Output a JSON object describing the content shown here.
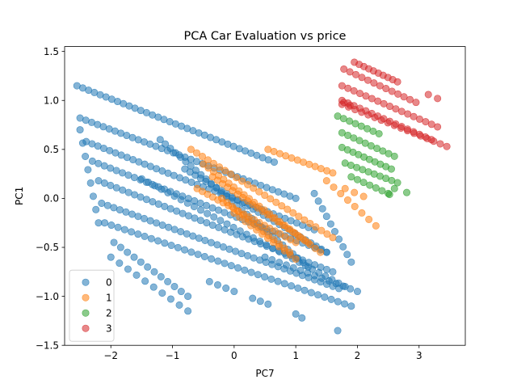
{
  "chart_data": {
    "type": "scatter",
    "title": "PCA Car Evaluation vs price",
    "xlabel": "PC7",
    "ylabel": "PC1",
    "xlim": [
      -2.75,
      3.75
    ],
    "ylim": [
      -1.5,
      1.55
    ],
    "xticks": [
      -2,
      -1,
      0,
      1,
      2,
      3
    ],
    "yticks": [
      -1.5,
      -1.0,
      -0.5,
      0.0,
      0.5,
      1.0,
      1.5
    ],
    "xtick_labels": [
      "−2",
      "−1",
      "0",
      "1",
      "2",
      "3"
    ],
    "ytick_labels": [
      "−1.5",
      "−1.0",
      "−0.5",
      "0.0",
      "0.5",
      "1.0",
      "1.5"
    ],
    "grid": false,
    "legend": "lower-left",
    "marker_alpha": 0.55,
    "series": [
      {
        "name": "0",
        "color": "#1f77b4",
        "clusters": [
          {
            "start": [
              -2.55,
              1.15
            ],
            "end": [
              0.65,
              0.37
            ],
            "n": 35
          },
          {
            "start": [
              -2.5,
              0.82
            ],
            "end": [
              1.0,
              0.0
            ],
            "n": 38
          },
          {
            "start": [
              -2.4,
              0.58
            ],
            "end": [
              1.3,
              -0.32
            ],
            "n": 40
          },
          {
            "start": [
              -2.3,
              0.38
            ],
            "end": [
              1.5,
              -0.55
            ],
            "n": 40
          },
          {
            "start": [
              -2.2,
              0.18
            ],
            "end": [
              1.6,
              -0.75
            ],
            "n": 40
          },
          {
            "start": [
              -2.15,
              -0.05
            ],
            "end": [
              1.7,
              -0.92
            ],
            "n": 40
          },
          {
            "start": [
              -2.1,
              -0.25
            ],
            "end": [
              1.9,
              -1.1
            ],
            "n": 38
          },
          {
            "start": [
              -1.95,
              -0.45
            ],
            "end": [
              -0.75,
              -1.0
            ],
            "n": 12
          },
          {
            "start": [
              -2.0,
              -0.6
            ],
            "end": [
              -0.75,
              -1.15
            ],
            "n": 10
          },
          {
            "start": [
              -0.4,
              -0.85
            ],
            "end": [
              0.0,
              -0.95
            ],
            "n": 4
          },
          {
            "start": [
              0.3,
              -1.02
            ],
            "end": [
              0.55,
              -1.08
            ],
            "n": 3
          },
          {
            "start": [
              1.0,
              -1.18
            ],
            "end": [
              1.1,
              -1.22
            ],
            "n": 2
          },
          {
            "start": [
              1.68,
              -1.35
            ],
            "end": [
              1.68,
              -1.35
            ],
            "n": 1
          },
          {
            "start": [
              -2.5,
              0.7
            ],
            "end": [
              -2.2,
              -0.25
            ],
            "n": 8
          },
          {
            "start": [
              -1.2,
              0.6
            ],
            "end": [
              1.2,
              -0.7
            ],
            "n": 30
          },
          {
            "start": [
              -0.8,
              0.3
            ],
            "end": [
              1.5,
              -0.55
            ],
            "n": 28
          },
          {
            "start": [
              -1.5,
              0.2
            ],
            "end": [
              1.8,
              -0.9
            ],
            "n": 32
          },
          {
            "start": [
              0.5,
              -0.6
            ],
            "end": [
              2.0,
              -0.95
            ],
            "n": 14
          },
          {
            "start": [
              1.3,
              0.05
            ],
            "end": [
              1.9,
              -0.65
            ],
            "n": 10
          }
        ]
      },
      {
        "name": "1",
        "color": "#ff7f0e",
        "clusters": [
          {
            "start": [
              -0.7,
              0.5
            ],
            "end": [
              1.6,
              -0.4
            ],
            "n": 26
          },
          {
            "start": [
              -0.5,
              0.35
            ],
            "end": [
              1.4,
              -0.55
            ],
            "n": 24
          },
          {
            "start": [
              -0.35,
              0.22
            ],
            "end": [
              1.2,
              -0.45
            ],
            "n": 20
          },
          {
            "start": [
              -0.6,
              0.1
            ],
            "end": [
              1.0,
              -0.45
            ],
            "n": 20
          },
          {
            "start": [
              -0.2,
              0.0
            ],
            "end": [
              0.9,
              -0.55
            ],
            "n": 14
          },
          {
            "start": [
              0.0,
              -0.15
            ],
            "end": [
              1.0,
              -0.62
            ],
            "n": 12
          },
          {
            "start": [
              0.55,
              0.5
            ],
            "end": [
              1.6,
              0.26
            ],
            "n": 12
          },
          {
            "start": [
              1.5,
              0.18
            ],
            "end": [
              2.3,
              -0.28
            ],
            "n": 8
          },
          {
            "start": [
              1.8,
              0.1
            ],
            "end": [
              2.1,
              0.02
            ],
            "n": 3
          }
        ]
      },
      {
        "name": "2",
        "color": "#2ca02c",
        "clusters": [
          {
            "start": [
              1.68,
              0.84
            ],
            "end": [
              2.35,
              0.66
            ],
            "n": 8
          },
          {
            "start": [
              1.75,
              0.67
            ],
            "end": [
              2.6,
              0.43
            ],
            "n": 10
          },
          {
            "start": [
              1.75,
              0.52
            ],
            "end": [
              2.55,
              0.3
            ],
            "n": 10
          },
          {
            "start": [
              1.8,
              0.36
            ],
            "end": [
              2.65,
              0.16
            ],
            "n": 10
          },
          {
            "start": [
              1.9,
              0.22
            ],
            "end": [
              2.5,
              0.05
            ],
            "n": 7
          },
          {
            "start": [
              2.6,
              0.1
            ],
            "end": [
              2.8,
              0.06
            ],
            "n": 2
          },
          {
            "start": [
              2.52,
              0.04
            ],
            "end": [
              2.52,
              0.04
            ],
            "n": 1
          }
        ]
      },
      {
        "name": "3",
        "color": "#d62728",
        "clusters": [
          {
            "start": [
              1.95,
              1.39
            ],
            "end": [
              2.65,
              1.19
            ],
            "n": 10
          },
          {
            "start": [
              1.78,
              1.32
            ],
            "end": [
              2.95,
              0.98
            ],
            "n": 13
          },
          {
            "start": [
              1.75,
              1.15
            ],
            "end": [
              3.3,
              0.73
            ],
            "n": 17
          },
          {
            "start": [
              1.75,
              1.0
            ],
            "end": [
              3.2,
              0.6
            ],
            "n": 16
          },
          {
            "start": [
              1.75,
              0.96
            ],
            "end": [
              3.45,
              0.53
            ],
            "n": 17
          },
          {
            "start": [
              3.15,
              1.06
            ],
            "end": [
              3.3,
              1.02
            ],
            "n": 2
          },
          {
            "start": [
              1.78,
              0.98
            ],
            "end": [
              1.88,
              0.95
            ],
            "n": 2
          }
        ]
      }
    ]
  }
}
